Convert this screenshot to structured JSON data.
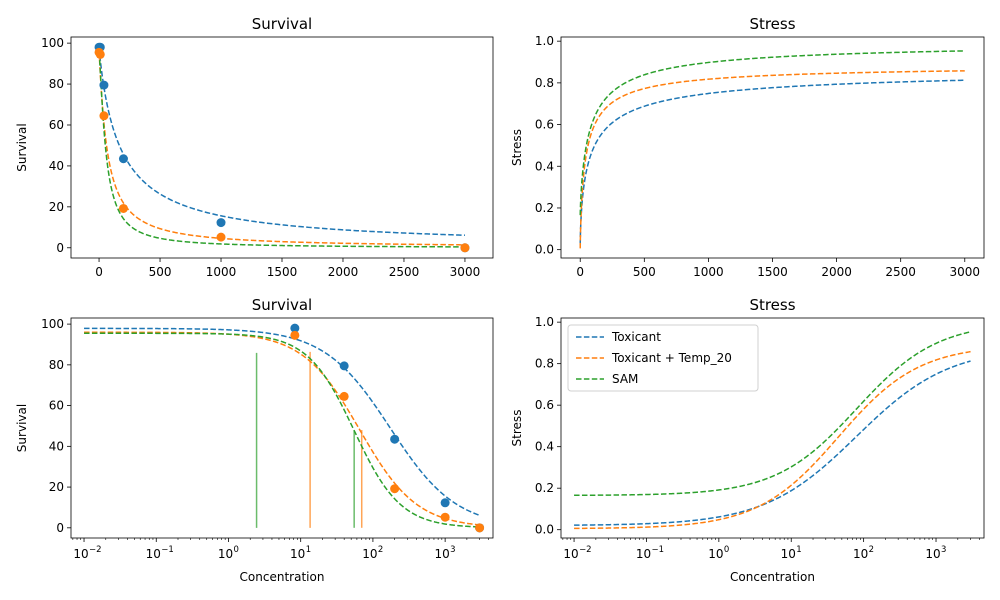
{
  "colors": {
    "toxicant": "#1f77b4",
    "toxicant_temp": "#ff7f0e",
    "sam": "#2ca02c"
  },
  "chart_data": [
    {
      "id": "survival-linear",
      "type": "line",
      "title": "Survival",
      "xlabel": "",
      "ylabel": "Survival",
      "xscale": "linear",
      "xlim": [
        -230,
        3230
      ],
      "ylim": [
        -5,
        103
      ],
      "xticks": [
        0,
        500,
        1000,
        1500,
        2000,
        2500,
        3000
      ],
      "yticks": [
        0,
        20,
        40,
        60,
        80,
        100
      ],
      "legend": null,
      "series": [
        {
          "name": "Toxicant",
          "style": "dashed",
          "color": "#1f77b4",
          "model": {
            "max": 97.9,
            "ec50": 174,
            "slope": 0.95
          }
        },
        {
          "name": "Toxicant + Temp_20",
          "style": "dashed",
          "color": "#ff7f0e",
          "model": {
            "max": 96.0,
            "ec50": 66,
            "slope": 1.1
          }
        },
        {
          "name": "SAM",
          "style": "dashed",
          "color": "#2ca02c",
          "model": {
            "max": 95.5,
            "ec50": 55,
            "slope": 1.35
          }
        }
      ],
      "points": [
        {
          "series": "Toxicant",
          "color": "#1f77b4",
          "x": [
            0.01,
            10,
            40,
            200,
            1000,
            3000
          ],
          "y": [
            98,
            98,
            79.5,
            43.5,
            12.3,
            0
          ]
        },
        {
          "series": "Toxicant + Temp_20",
          "color": "#ff7f0e",
          "x": [
            0.01,
            10,
            40,
            200,
            1000,
            3000
          ],
          "y": [
            95.5,
            94.5,
            64.5,
            19.2,
            5.2,
            0
          ]
        }
      ]
    },
    {
      "id": "stress-linear",
      "type": "line",
      "title": "Stress",
      "xlabel": "",
      "ylabel": "Stress",
      "xscale": "linear",
      "xlim": [
        -150,
        3150
      ],
      "ylim": [
        -0.04,
        1.02
      ],
      "xticks": [
        0,
        500,
        1000,
        1500,
        2000,
        2500,
        3000
      ],
      "yticks": [
        0.0,
        0.2,
        0.4,
        0.6,
        0.8,
        1.0
      ],
      "legend": null,
      "series": [
        {
          "name": "Toxicant",
          "style": "dashed",
          "color": "#1f77b4",
          "model": {
            "lo": 0.02,
            "hi": 0.88,
            "ec50": 80,
            "slope": 0.68
          }
        },
        {
          "name": "Toxicant + Temp_20",
          "style": "dashed",
          "color": "#ff7f0e",
          "model": {
            "lo": 0.005,
            "hi": 0.89,
            "ec50": 45,
            "slope": 0.78
          }
        },
        {
          "name": "SAM",
          "style": "dashed",
          "color": "#2ca02c",
          "model": {
            "lo": 0.165,
            "hi": 1.0,
            "ec50": 80,
            "slope": 0.78
          }
        }
      ]
    },
    {
      "id": "survival-log",
      "type": "line",
      "title": "Survival",
      "xlabel": "Concentration",
      "ylabel": "Survival",
      "xscale": "log",
      "xlim": [
        0.0066,
        4600
      ],
      "ylim": [
        -5,
        103
      ],
      "xticks": [
        0.01,
        0.1,
        1,
        10,
        100,
        1000
      ],
      "xticklabels": [
        "10",
        "10",
        "10",
        "10",
        "10",
        "10"
      ],
      "xtickexp": [
        "−2",
        "−1",
        "0",
        "1",
        "2",
        "3"
      ],
      "yticks": [
        0,
        20,
        40,
        60,
        80,
        100
      ],
      "legend": null,
      "series": [
        {
          "name": "Toxicant",
          "style": "dashed",
          "color": "#1f77b4",
          "model": {
            "max": 97.9,
            "ec50": 174,
            "slope": 0.95
          }
        },
        {
          "name": "Toxicant + Temp_20",
          "style": "dashed",
          "color": "#ff7f0e",
          "model": {
            "max": 96.0,
            "ec50": 66,
            "slope": 1.1
          }
        },
        {
          "name": "SAM",
          "style": "dashed",
          "color": "#2ca02c",
          "model": {
            "max": 95.5,
            "ec50": 55,
            "slope": 1.35
          }
        }
      ],
      "points": [
        {
          "series": "Toxicant",
          "color": "#1f77b4",
          "x": [
            8.3,
            40,
            200,
            1000,
            3000
          ],
          "y": [
            98,
            79.5,
            43.5,
            12.3,
            0
          ]
        },
        {
          "series": "Toxicant + Temp_20",
          "color": "#ff7f0e",
          "x": [
            8.3,
            40,
            200,
            1000,
            3000
          ],
          "y": [
            94.5,
            64.5,
            19.2,
            5.2,
            0
          ]
        }
      ],
      "vlines": [
        {
          "x": 2.45,
          "y": 85.9,
          "color": "#2ca02c"
        },
        {
          "x": 13.5,
          "y": 86.4,
          "color": "#ff7f0e"
        },
        {
          "x": 55,
          "y": 47.7,
          "color": "#2ca02c"
        },
        {
          "x": 70,
          "y": 48.0,
          "color": "#ff7f0e"
        }
      ]
    },
    {
      "id": "stress-log",
      "type": "line",
      "title": "Stress",
      "xlabel": "Concentration",
      "ylabel": "Stress",
      "xscale": "log",
      "xlim": [
        0.0066,
        4600
      ],
      "ylim": [
        -0.04,
        1.02
      ],
      "xticks": [
        0.01,
        0.1,
        1,
        10,
        100,
        1000
      ],
      "xticklabels": [
        "10",
        "10",
        "10",
        "10",
        "10",
        "10"
      ],
      "xtickexp": [
        "−2",
        "−1",
        "0",
        "1",
        "2",
        "3"
      ],
      "yticks": [
        0.0,
        0.2,
        0.4,
        0.6,
        0.8,
        1.0
      ],
      "legend": {
        "position": "top-left",
        "entries": [
          "Toxicant",
          "Toxicant + Temp_20",
          "SAM"
        ]
      },
      "series": [
        {
          "name": "Toxicant",
          "style": "dashed",
          "color": "#1f77b4",
          "model": {
            "lo": 0.02,
            "hi": 0.88,
            "ec50": 80,
            "slope": 0.68
          }
        },
        {
          "name": "Toxicant + Temp_20",
          "style": "dashed",
          "color": "#ff7f0e",
          "model": {
            "lo": 0.005,
            "hi": 0.89,
            "ec50": 45,
            "slope": 0.78
          }
        },
        {
          "name": "SAM",
          "style": "dashed",
          "color": "#2ca02c",
          "model": {
            "lo": 0.165,
            "hi": 1.0,
            "ec50": 80,
            "slope": 0.78
          }
        }
      ]
    }
  ]
}
